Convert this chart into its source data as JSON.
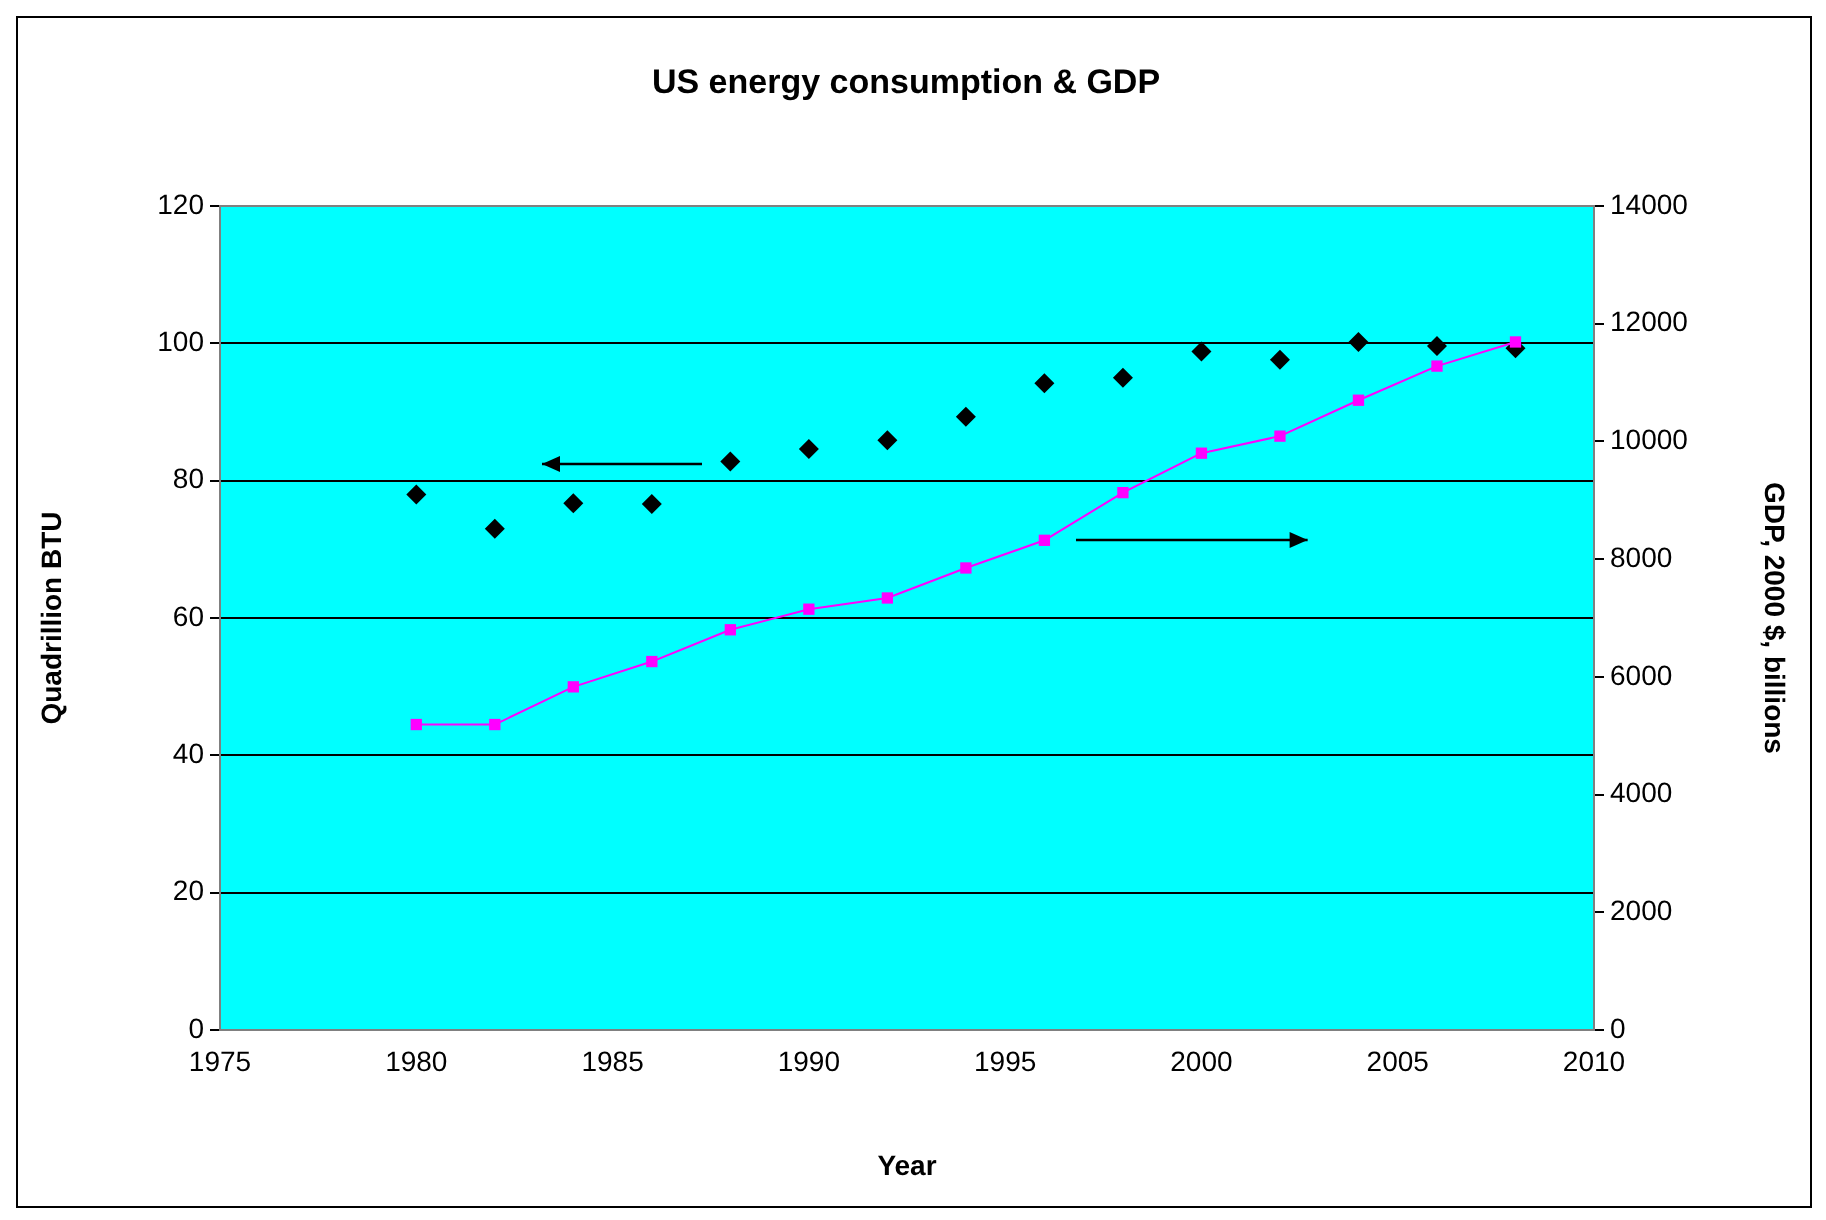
{
  "chart_data": {
    "type": "scatter",
    "title": "US energy consumption & GDP",
    "xlabel": "Year",
    "ylabel": "Quadrillion BTU",
    "y2label": "GDP, 2000 $, billions",
    "x": [
      1980,
      1982,
      1984,
      1986,
      1988,
      1990,
      1992,
      1994,
      1996,
      1998,
      2000,
      2002,
      2004,
      2006,
      2008
    ],
    "xlim": [
      1975,
      2010
    ],
    "xticks": [
      1975,
      1980,
      1985,
      1990,
      1995,
      2000,
      2005,
      2010
    ],
    "ylim": [
      0,
      120
    ],
    "yticks": [
      0,
      20,
      40,
      60,
      80,
      100,
      120
    ],
    "y2lim": [
      0,
      14000
    ],
    "y2ticks": [
      0,
      2000,
      4000,
      6000,
      8000,
      10000,
      12000,
      14000
    ],
    "grid": "y",
    "series": [
      {
        "type": "scatter",
        "color": "#000000",
        "marker": "diamond",
        "values": [
          78,
          73,
          76.7,
          76.6,
          82.8,
          84.6,
          85.9,
          89.3,
          94.2,
          95,
          98.8,
          97.6,
          100.2,
          99.6,
          99.3
        ]
      },
      {
        "type": "line",
        "axis": "y2",
        "color": "#ff00ff",
        "marker": "square",
        "values": [
          5190,
          5190,
          5830,
          6260,
          6800,
          7150,
          7340,
          7850,
          8320,
          9130,
          9800,
          10090,
          10700,
          11280,
          11690
        ]
      }
    ]
  }
}
